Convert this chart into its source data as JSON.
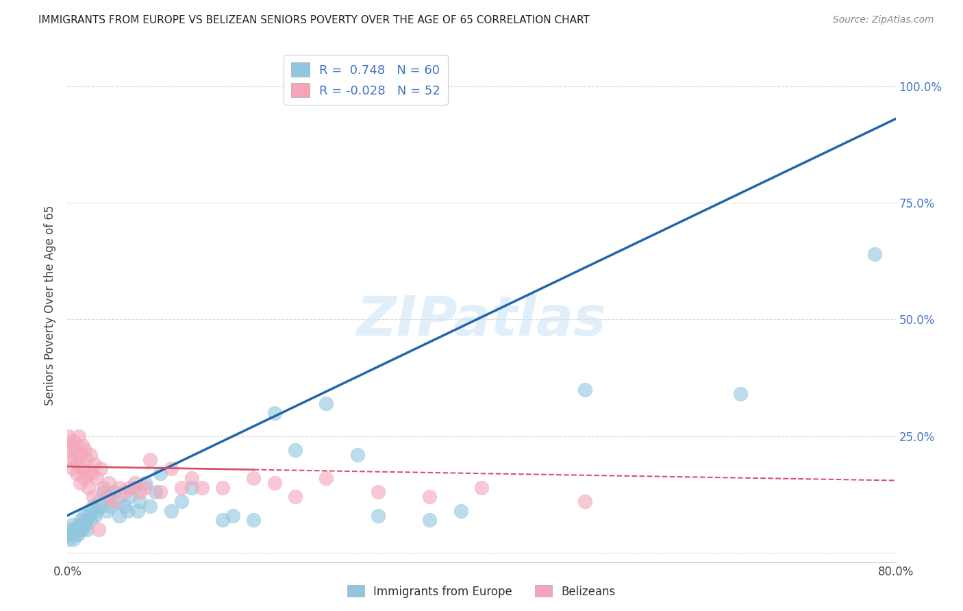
{
  "title": "IMMIGRANTS FROM EUROPE VS BELIZEAN SENIORS POVERTY OVER THE AGE OF 65 CORRELATION CHART",
  "source": "Source: ZipAtlas.com",
  "ylabel": "Seniors Poverty Over the Age of 65",
  "r_blue": 0.748,
  "n_blue": 60,
  "r_pink": -0.028,
  "n_pink": 52,
  "blue_color": "#92c5de",
  "pink_color": "#f4a6b8",
  "blue_line_color": "#2166ac",
  "pink_line_color": "#d6526a",
  "blue_scatter": [
    [
      0.001,
      0.04
    ],
    [
      0.002,
      0.03
    ],
    [
      0.003,
      0.05
    ],
    [
      0.004,
      0.04
    ],
    [
      0.005,
      0.06
    ],
    [
      0.006,
      0.03
    ],
    [
      0.007,
      0.05
    ],
    [
      0.008,
      0.04
    ],
    [
      0.009,
      0.05
    ],
    [
      0.01,
      0.04
    ],
    [
      0.011,
      0.06
    ],
    [
      0.012,
      0.05
    ],
    [
      0.013,
      0.07
    ],
    [
      0.014,
      0.05
    ],
    [
      0.015,
      0.06
    ],
    [
      0.016,
      0.08
    ],
    [
      0.017,
      0.06
    ],
    [
      0.018,
      0.07
    ],
    [
      0.019,
      0.05
    ],
    [
      0.02,
      0.08
    ],
    [
      0.022,
      0.07
    ],
    [
      0.023,
      0.09
    ],
    [
      0.025,
      0.1
    ],
    [
      0.027,
      0.08
    ],
    [
      0.028,
      0.09
    ],
    [
      0.03,
      0.11
    ],
    [
      0.032,
      0.1
    ],
    [
      0.035,
      0.13
    ],
    [
      0.038,
      0.09
    ],
    [
      0.04,
      0.12
    ],
    [
      0.042,
      0.1
    ],
    [
      0.045,
      0.13
    ],
    [
      0.048,
      0.11
    ],
    [
      0.05,
      0.08
    ],
    [
      0.055,
      0.1
    ],
    [
      0.058,
      0.09
    ],
    [
      0.06,
      0.12
    ],
    [
      0.065,
      0.14
    ],
    [
      0.068,
      0.09
    ],
    [
      0.07,
      0.11
    ],
    [
      0.075,
      0.15
    ],
    [
      0.08,
      0.1
    ],
    [
      0.085,
      0.13
    ],
    [
      0.09,
      0.17
    ],
    [
      0.1,
      0.09
    ],
    [
      0.11,
      0.11
    ],
    [
      0.12,
      0.14
    ],
    [
      0.15,
      0.07
    ],
    [
      0.16,
      0.08
    ],
    [
      0.18,
      0.07
    ],
    [
      0.2,
      0.3
    ],
    [
      0.22,
      0.22
    ],
    [
      0.25,
      0.32
    ],
    [
      0.28,
      0.21
    ],
    [
      0.3,
      0.08
    ],
    [
      0.35,
      0.07
    ],
    [
      0.38,
      0.09
    ],
    [
      0.5,
      0.35
    ],
    [
      0.65,
      0.34
    ],
    [
      0.78,
      0.64
    ]
  ],
  "pink_scatter": [
    [
      0.001,
      0.25
    ],
    [
      0.002,
      0.22
    ],
    [
      0.003,
      0.2
    ],
    [
      0.004,
      0.23
    ],
    [
      0.005,
      0.18
    ],
    [
      0.006,
      0.24
    ],
    [
      0.007,
      0.2
    ],
    [
      0.008,
      0.22
    ],
    [
      0.009,
      0.17
    ],
    [
      0.01,
      0.19
    ],
    [
      0.011,
      0.25
    ],
    [
      0.012,
      0.15
    ],
    [
      0.013,
      0.21
    ],
    [
      0.014,
      0.23
    ],
    [
      0.015,
      0.18
    ],
    [
      0.016,
      0.16
    ],
    [
      0.017,
      0.22
    ],
    [
      0.018,
      0.2
    ],
    [
      0.019,
      0.17
    ],
    [
      0.02,
      0.14
    ],
    [
      0.022,
      0.21
    ],
    [
      0.023,
      0.17
    ],
    [
      0.025,
      0.12
    ],
    [
      0.026,
      0.19
    ],
    [
      0.028,
      0.16
    ],
    [
      0.03,
      0.05
    ],
    [
      0.032,
      0.18
    ],
    [
      0.035,
      0.14
    ],
    [
      0.038,
      0.12
    ],
    [
      0.04,
      0.15
    ],
    [
      0.045,
      0.11
    ],
    [
      0.05,
      0.14
    ],
    [
      0.055,
      0.13
    ],
    [
      0.06,
      0.14
    ],
    [
      0.065,
      0.15
    ],
    [
      0.07,
      0.13
    ],
    [
      0.075,
      0.14
    ],
    [
      0.08,
      0.2
    ],
    [
      0.09,
      0.13
    ],
    [
      0.1,
      0.18
    ],
    [
      0.11,
      0.14
    ],
    [
      0.12,
      0.16
    ],
    [
      0.13,
      0.14
    ],
    [
      0.15,
      0.14
    ],
    [
      0.18,
      0.16
    ],
    [
      0.2,
      0.15
    ],
    [
      0.22,
      0.12
    ],
    [
      0.25,
      0.16
    ],
    [
      0.3,
      0.13
    ],
    [
      0.35,
      0.12
    ],
    [
      0.4,
      0.14
    ],
    [
      0.5,
      0.11
    ]
  ],
  "blue_line_x0": 0.0,
  "blue_line_y0": 0.08,
  "blue_line_x1": 0.8,
  "blue_line_y1": 0.93,
  "pink_line_x0": 0.0,
  "pink_line_y0": 0.185,
  "pink_line_x1": 0.8,
  "pink_line_y1": 0.155,
  "xlim": [
    0.0,
    0.8
  ],
  "ylim": [
    -0.02,
    1.08
  ],
  "xticks": [
    0.0,
    0.1,
    0.2,
    0.3,
    0.4,
    0.5,
    0.6,
    0.7,
    0.8
  ],
  "yticks": [
    0.0,
    0.25,
    0.5,
    0.75,
    1.0
  ],
  "ytick_labels_right": [
    "",
    "25.0%",
    "50.0%",
    "75.0%",
    "100.0%"
  ],
  "watermark": "ZIPatlas",
  "background_color": "#ffffff",
  "grid_color": "#d0d0d0"
}
